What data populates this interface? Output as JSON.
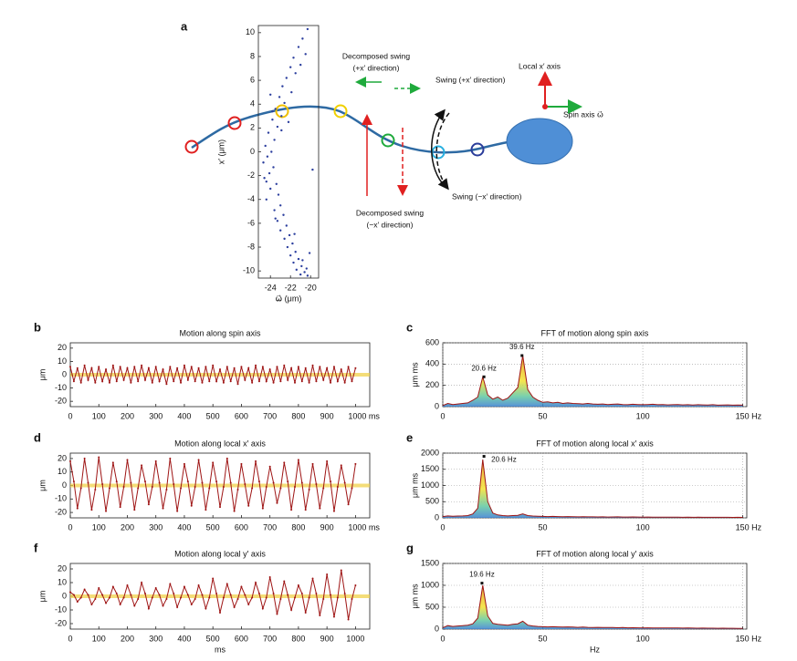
{
  "diagram": {
    "panel": "a",
    "labels": [
      "Decomposed swing",
      "(+x′ direction)",
      "Swing (+x′ direction)",
      "Local x′ axis",
      "Spin axis ω⃗",
      "Decomposed swing",
      "(−x′ direction)",
      "Swing (−x′ direction)"
    ]
  },
  "chart_data": [
    {
      "type": "scatter",
      "color": "#2c3f9e",
      "ylabel": "x′ (μm)",
      "xlabel": "ω⃗ (μm)",
      "xlim": [
        -25.2,
        -19.2
      ],
      "ylim": [
        -10.6,
        10.6
      ],
      "xticks": [
        -24,
        -22,
        -20
      ],
      "yticks": [
        -10,
        -8,
        -6,
        -4,
        -2,
        0,
        2,
        4,
        6,
        8,
        10
      ],
      "x": [
        -20.3,
        -20.8,
        -21.2,
        -20.5,
        -21.7,
        -22.0,
        -21.5,
        -22.4,
        -22.8,
        -21.9,
        -23.1,
        -22.6,
        -23.5,
        -22.9,
        -23.8,
        -23.3,
        -24.2,
        -23.6,
        -24.5,
        -23.9,
        -24.3,
        -24.7,
        -23.7,
        -24.1,
        -24.6,
        -23.4,
        -24.0,
        -23.2,
        -24.4,
        -23.0,
        -23.6,
        -22.7,
        -23.3,
        -22.4,
        -23.0,
        -22.1,
        -22.6,
        -21.8,
        -22.3,
        -21.5,
        -22.0,
        -21.2,
        -21.7,
        -20.9,
        -21.4,
        -20.6,
        -21.0,
        -20.3,
        -20.8,
        -20.1,
        -22.9,
        -23.8,
        -21.0,
        -24.4,
        -19.8,
        -23.5,
        -22.2,
        -20.4,
        -24.0,
        -21.6
      ],
      "y": [
        10.3,
        9.5,
        8.8,
        8.2,
        7.9,
        7.1,
        6.6,
        6.2,
        5.5,
        5.0,
        4.6,
        4.1,
        3.6,
        3.0,
        2.7,
        2.1,
        1.6,
        1.0,
        0.5,
        0.0,
        -0.4,
        -0.9,
        -1.3,
        -1.8,
        -2.2,
        -2.7,
        -3.1,
        -3.6,
        -4.0,
        -4.5,
        -4.9,
        -5.3,
        -5.8,
        -6.2,
        -6.6,
        -7.0,
        -7.3,
        -7.7,
        -8.0,
        -8.4,
        -8.7,
        -9.0,
        -9.3,
        -9.6,
        -9.9,
        -10.1,
        -10.3,
        -10.4,
        -9.1,
        -8.5,
        1.8,
        3.4,
        7.3,
        -2.5,
        -1.5,
        -5.6,
        2.5,
        -9.8,
        4.8,
        -6.9
      ]
    },
    {
      "type": "line",
      "panel": "b",
      "title": "Motion along spin axis",
      "ylabel": "μm",
      "color": "#9e1414",
      "xlim": [
        0,
        1050
      ],
      "ylim": [
        -24,
        24
      ],
      "xticks": [
        0,
        100,
        200,
        300,
        400,
        500,
        600,
        700,
        800,
        900,
        {
          "value": 1000,
          "label": "1000 ms"
        }
      ],
      "yticks": [
        -20,
        -10,
        0,
        10,
        20
      ],
      "x": [
        0,
        12.5,
        25,
        37.5,
        50,
        62.5,
        75,
        87.5,
        100,
        112.5,
        125,
        137.5,
        150,
        162.5,
        175,
        187.5,
        200,
        212.5,
        225,
        237.5,
        250,
        262.5,
        275,
        287.5,
        300,
        312.5,
        325,
        337.5,
        350,
        362.5,
        375,
        387.5,
        400,
        412.5,
        425,
        437.5,
        450,
        462.5,
        475,
        487.5,
        500,
        512.5,
        525,
        537.5,
        550,
        562.5,
        575,
        587.5,
        600,
        612.5,
        625,
        637.5,
        650,
        662.5,
        675,
        687.5,
        700,
        712.5,
        725,
        737.5,
        750,
        762.5,
        775,
        787.5,
        800,
        812.5,
        825,
        837.5,
        850,
        862.5,
        875,
        887.5,
        900,
        912.5,
        925,
        937.5,
        950,
        962.5,
        975,
        987.5,
        1000
      ],
      "values": [
        6,
        -5,
        5,
        -6,
        7,
        -4,
        5,
        -6,
        6,
        -5,
        4,
        -6,
        7,
        -5,
        6,
        -4,
        5,
        -6,
        6,
        -5,
        7,
        -4,
        5,
        -6,
        6,
        -5,
        4,
        -7,
        6,
        -5,
        5,
        -6,
        7,
        -4,
        6,
        -5,
        5,
        -6,
        6,
        -5,
        7,
        -5,
        4,
        -6,
        6,
        -5,
        5,
        -7,
        6,
        -4,
        5,
        -6,
        7,
        -5,
        6,
        -5,
        4,
        -6,
        6,
        -5,
        7,
        -4,
        5,
        -6,
        6,
        -5,
        5,
        -6,
        7,
        -5,
        6,
        -4,
        5,
        -6,
        6,
        -5,
        4,
        -6,
        6,
        -5,
        5
      ]
    },
    {
      "type": "line",
      "panel": "c",
      "title": "FFT of motion along spin axis",
      "ylabel": "μm ms",
      "color": "#9e1414",
      "grid": true,
      "fill": true,
      "xlim": [
        0,
        152
      ],
      "ylim": [
        0,
        600
      ],
      "xticks": [
        0,
        50,
        100,
        {
          "value": 150,
          "label": "150 Hz"
        }
      ],
      "yticks": [
        0,
        200,
        400,
        600
      ],
      "x": [
        0,
        2.5,
        5,
        7.5,
        10,
        12.5,
        15,
        17.5,
        20,
        22.5,
        25,
        27.5,
        30,
        32.5,
        35,
        37.5,
        40,
        42.5,
        45,
        47.5,
        50,
        52.5,
        55,
        57.5,
        60,
        62.5,
        65,
        67.5,
        70,
        72.5,
        75,
        77.5,
        80,
        82.5,
        85,
        87.5,
        90,
        92.5,
        95,
        97.5,
        100,
        102.5,
        105,
        107.5,
        110,
        112.5,
        115,
        117.5,
        120,
        122.5,
        125,
        127.5,
        130,
        132.5,
        135,
        137.5,
        140,
        142.5,
        145,
        147.5,
        150
      ],
      "values": [
        10,
        30,
        20,
        25,
        30,
        35,
        60,
        90,
        280,
        110,
        70,
        90,
        60,
        80,
        130,
        180,
        480,
        160,
        90,
        60,
        40,
        45,
        35,
        40,
        30,
        35,
        30,
        28,
        25,
        30,
        25,
        22,
        25,
        20,
        22,
        25,
        20,
        18,
        22,
        20,
        18,
        20,
        22,
        18,
        20,
        16,
        18,
        20,
        16,
        18,
        15,
        18,
        16,
        15,
        18,
        14,
        15,
        16,
        14,
        15,
        14
      ],
      "annotations": [
        {
          "text": "20.6 Hz",
          "x": 20.6,
          "y": 280
        },
        {
          "text": "39.6 Hz",
          "x": 39.6,
          "y": 480
        }
      ]
    },
    {
      "type": "line",
      "panel": "d",
      "title": "Motion along local x′ axis",
      "ylabel": "μm",
      "color": "#9e1414",
      "xlim": [
        0,
        1050
      ],
      "ylim": [
        -24,
        24
      ],
      "xticks": [
        0,
        100,
        200,
        300,
        400,
        500,
        600,
        700,
        800,
        900,
        {
          "value": 1000,
          "label": "1000 ms"
        }
      ],
      "yticks": [
        -20,
        -10,
        0,
        10,
        20
      ],
      "x": [
        0,
        12.5,
        25,
        37.5,
        50,
        62.5,
        75,
        87.5,
        100,
        112.5,
        125,
        137.5,
        150,
        162.5,
        175,
        187.5,
        200,
        212.5,
        225,
        237.5,
        250,
        262.5,
        275,
        287.5,
        300,
        312.5,
        325,
        337.5,
        350,
        362.5,
        375,
        387.5,
        400,
        412.5,
        425,
        437.5,
        450,
        462.5,
        475,
        487.5,
        500,
        512.5,
        525,
        537.5,
        550,
        562.5,
        575,
        587.5,
        600,
        612.5,
        625,
        637.5,
        650,
        662.5,
        675,
        687.5,
        700,
        712.5,
        725,
        737.5,
        750,
        762.5,
        775,
        787.5,
        800,
        812.5,
        825,
        837.5,
        850,
        862.5,
        875,
        887.5,
        900,
        912.5,
        925,
        937.5,
        950,
        962.5,
        975,
        987.5,
        1000
      ],
      "values": [
        18,
        3,
        -17,
        -2,
        20,
        2,
        -18,
        -3,
        21,
        1,
        -19,
        -2,
        17,
        3,
        -16,
        -1,
        19,
        2,
        -18,
        -2,
        15,
        3,
        -14,
        -1,
        18,
        2,
        -17,
        -3,
        20,
        1,
        -19,
        -2,
        16,
        3,
        -15,
        -1,
        19,
        2,
        -18,
        -2,
        17,
        3,
        -16,
        -1,
        20,
        2,
        -19,
        -3,
        16,
        1,
        -15,
        -2,
        18,
        3,
        -17,
        -1,
        14,
        2,
        -13,
        -2,
        17,
        3,
        -18,
        -1,
        19,
        2,
        -18,
        -3,
        16,
        1,
        -17,
        -2,
        18,
        3,
        -19,
        -1,
        15,
        2,
        -14,
        -2,
        16
      ]
    },
    {
      "type": "line",
      "panel": "e",
      "title": "FFT of motion along local x′ axis",
      "ylabel": "μm ms",
      "color": "#9e1414",
      "grid": true,
      "fill": true,
      "xlim": [
        0,
        152
      ],
      "ylim": [
        0,
        2000
      ],
      "xticks": [
        0,
        50,
        100,
        {
          "value": 150,
          "label": "150 Hz"
        }
      ],
      "yticks": [
        0,
        500,
        1000,
        1500,
        2000
      ],
      "x": [
        0,
        2.5,
        5,
        7.5,
        10,
        12.5,
        15,
        17.5,
        20,
        22.5,
        25,
        27.5,
        30,
        32.5,
        35,
        37.5,
        40,
        42.5,
        45,
        47.5,
        50,
        52.5,
        55,
        57.5,
        60,
        62.5,
        65,
        67.5,
        70,
        72.5,
        75,
        77.5,
        80,
        82.5,
        85,
        87.5,
        90,
        92.5,
        95,
        97.5,
        100,
        102.5,
        105,
        107.5,
        110,
        112.5,
        115,
        117.5,
        120,
        122.5,
        125,
        127.5,
        130,
        132.5,
        135,
        137.5,
        140,
        142.5,
        145,
        147.5,
        150
      ],
      "values": [
        40,
        60,
        50,
        55,
        60,
        70,
        120,
        300,
        1800,
        500,
        150,
        90,
        70,
        60,
        70,
        80,
        120,
        70,
        55,
        50,
        45,
        40,
        45,
        40,
        35,
        40,
        35,
        30,
        35,
        30,
        30,
        28,
        30,
        25,
        28,
        30,
        25,
        25,
        28,
        25,
        22,
        25,
        22,
        20,
        22,
        20,
        22,
        20,
        18,
        20,
        18,
        20,
        18,
        16,
        18,
        16,
        18,
        16,
        15,
        16,
        15
      ],
      "annotations": [
        {
          "text": "20.6 Hz",
          "x": 20.6,
          "y": 1900
        }
      ]
    },
    {
      "type": "line",
      "panel": "f",
      "title": "Motion along local y′ axis",
      "ylabel": "μm",
      "xlabel": "ms",
      "color": "#9e1414",
      "xlim": [
        0,
        1050
      ],
      "ylim": [
        -24,
        24
      ],
      "xticks": [
        0,
        100,
        200,
        300,
        400,
        500,
        600,
        700,
        800,
        900,
        1000
      ],
      "yticks": [
        -20,
        -10,
        0,
        10,
        20
      ],
      "x": [
        0,
        12.5,
        25,
        37.5,
        50,
        62.5,
        75,
        87.5,
        100,
        112.5,
        125,
        137.5,
        150,
        162.5,
        175,
        187.5,
        200,
        212.5,
        225,
        237.5,
        250,
        262.5,
        275,
        287.5,
        300,
        312.5,
        325,
        337.5,
        350,
        362.5,
        375,
        387.5,
        400,
        412.5,
        425,
        437.5,
        450,
        462.5,
        475,
        487.5,
        500,
        512.5,
        525,
        537.5,
        550,
        562.5,
        575,
        587.5,
        600,
        612.5,
        625,
        637.5,
        650,
        662.5,
        675,
        687.5,
        700,
        712.5,
        725,
        737.5,
        750,
        762.5,
        775,
        787.5,
        800,
        812.5,
        825,
        837.5,
        850,
        862.5,
        875,
        887.5,
        900,
        912.5,
        925,
        937.5,
        950,
        962.5,
        975,
        987.5,
        1000
      ],
      "values": [
        3,
        1,
        -4,
        -1,
        5,
        1,
        -6,
        -2,
        6,
        1,
        -5,
        -1,
        7,
        2,
        -6,
        -1,
        8,
        1,
        -7,
        -2,
        10,
        2,
        -9,
        -1,
        6,
        1,
        -7,
        -2,
        9,
        2,
        -8,
        -1,
        7,
        1,
        -6,
        -2,
        8,
        1,
        -9,
        -1,
        13,
        2,
        -12,
        -1,
        9,
        1,
        -8,
        -2,
        7,
        1,
        -6,
        -1,
        10,
        2,
        -9,
        -1,
        14,
        2,
        -13,
        -2,
        11,
        1,
        -10,
        -1,
        8,
        2,
        -12,
        -1,
        13,
        2,
        -14,
        -2,
        16,
        1,
        -15,
        -1,
        19,
        2,
        -17,
        -2,
        8
      ]
    },
    {
      "type": "line",
      "panel": "g",
      "title": "FFT of motion along local y′ axis",
      "ylabel": "μm ms",
      "xlabel": "Hz",
      "color": "#9e1414",
      "grid": true,
      "fill": true,
      "xlim": [
        0,
        152
      ],
      "ylim": [
        0,
        1500
      ],
      "xticks": [
        0,
        50,
        100,
        {
          "value": 150,
          "label": "150 Hz"
        }
      ],
      "yticks": [
        0,
        500,
        1000,
        1500
      ],
      "x": [
        0,
        2.5,
        5,
        7.5,
        10,
        12.5,
        15,
        17.5,
        20,
        22.5,
        25,
        27.5,
        30,
        32.5,
        35,
        37.5,
        40,
        42.5,
        45,
        47.5,
        50,
        52.5,
        55,
        57.5,
        60,
        62.5,
        65,
        67.5,
        70,
        72.5,
        75,
        77.5,
        80,
        82.5,
        85,
        87.5,
        90,
        92.5,
        95,
        97.5,
        100,
        102.5,
        105,
        107.5,
        110,
        112.5,
        115,
        117.5,
        120,
        122.5,
        125,
        127.5,
        130,
        132.5,
        135,
        137.5,
        140,
        142.5,
        145,
        147.5,
        150
      ],
      "values": [
        30,
        80,
        60,
        70,
        80,
        90,
        120,
        250,
        1000,
        300,
        130,
        110,
        100,
        90,
        110,
        120,
        180,
        90,
        70,
        60,
        55,
        50,
        55,
        50,
        45,
        50,
        45,
        40,
        45,
        40,
        38,
        40,
        35,
        38,
        35,
        32,
        35,
        30,
        32,
        30,
        28,
        30,
        28,
        25,
        28,
        25,
        24,
        25,
        22,
        24,
        22,
        20,
        22,
        20,
        20,
        18,
        20,
        18,
        18,
        16,
        16
      ],
      "annotations": [
        {
          "text": "19.6 Hz",
          "x": 19.6,
          "y": 1050
        }
      ]
    }
  ]
}
